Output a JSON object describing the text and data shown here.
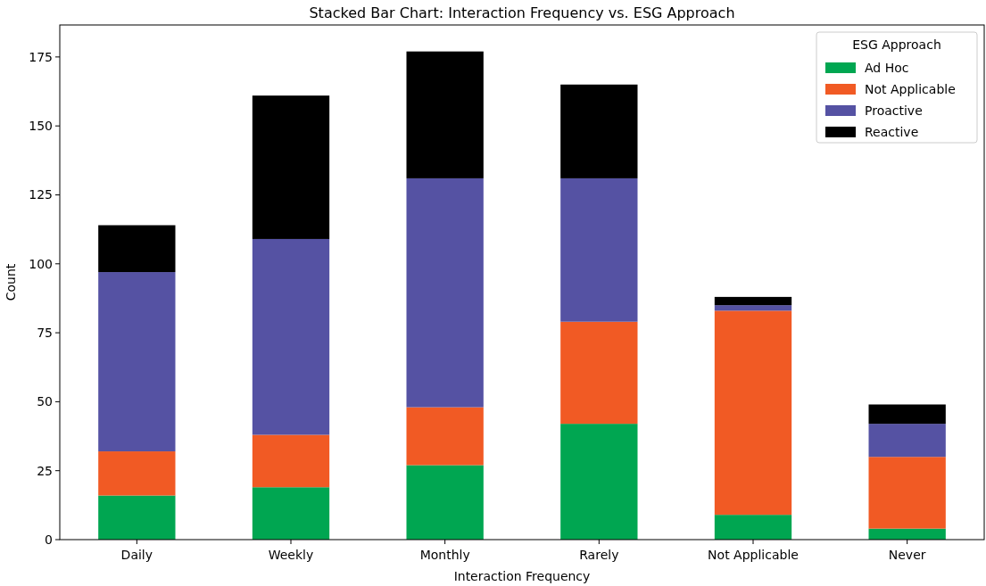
{
  "chart_data": {
    "type": "bar",
    "title": "Stacked Bar Chart: Interaction Frequency vs. ESG Approach",
    "xlabel": "Interaction Frequency",
    "ylabel": "Count",
    "legend_title": "ESG Approach",
    "categories": [
      "Daily",
      "Weekly",
      "Monthly",
      "Rarely",
      "Not Applicable",
      "Never"
    ],
    "series": [
      {
        "name": "Ad Hoc",
        "color": "#00a651",
        "values": [
          16,
          19,
          27,
          42,
          9,
          4
        ]
      },
      {
        "name": "Not Applicable",
        "color": "#f15a24",
        "values": [
          16,
          19,
          21,
          37,
          74,
          26
        ]
      },
      {
        "name": "Proactive",
        "color": "#5552a3",
        "values": [
          65,
          71,
          83,
          52,
          2,
          12
        ]
      },
      {
        "name": "Reactive",
        "color": "#000000",
        "values": [
          17,
          52,
          46,
          34,
          3,
          7
        ]
      }
    ],
    "stacked": true,
    "ylim": [
      0,
      186.6
    ],
    "yticks": [
      0,
      25,
      50,
      75,
      100,
      125,
      150,
      175
    ],
    "grid": false,
    "legend": "top right"
  }
}
